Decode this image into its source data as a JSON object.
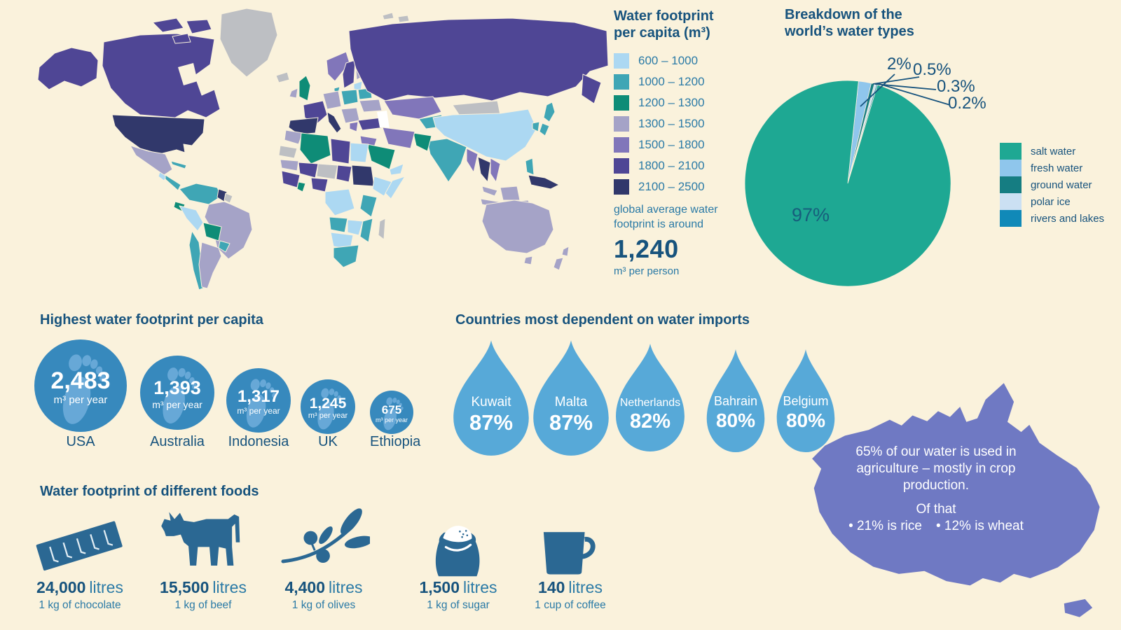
{
  "palette": {
    "bg": "#FAF2DC",
    "ink": "#17537D",
    "inkLight": "#2A7AA6",
    "white": "#FFFFFF",
    "bucket1": "#ACD8F2",
    "bucket2": "#3FA6B5",
    "bucket3": "#0E8C77",
    "bucket4": "#A5A3C7",
    "bucket5": "#8176BA",
    "bucket6": "#4F4695",
    "bucket7": "#31386B",
    "nodata": "#BDBFC3",
    "pieSalt": "#1EA893",
    "pieFresh": "#8FC6EC",
    "pieGround": "#157D82",
    "piePolar": "#CBE0F3",
    "pieRivers": "#1089B8",
    "pieInside": "#175E7C",
    "circleBlue": "#3789BD",
    "footLight": "#74B0DE",
    "dropBlue": "#57A9D8",
    "foodBlue": "#2B6893",
    "auPurple": "#6F79C3"
  },
  "map_legend": {
    "title": "Water footprint per capita (m³)",
    "ranges": [
      "600 – 1000",
      "1000 – 1200",
      "1200 – 1300",
      "1300 – 1500",
      "1500 – 1800",
      "1800 – 2100",
      "2100 – 2500"
    ],
    "avg_intro": "global average water footprint is around",
    "avg_value": "1,240",
    "avg_unit": "m³ per person"
  },
  "pie": {
    "title": "Breakdown of the world’s water types",
    "inside_label": "97%",
    "callouts": [
      "2%",
      "0.5%",
      "0.3%",
      "0.2%"
    ],
    "legend": [
      "salt water",
      "fresh water",
      "ground water",
      "polar ice",
      "rivers and lakes"
    ]
  },
  "footprints": {
    "title": "Highest water footprint per capita",
    "unit": "m³ per year",
    "items": [
      {
        "country": "USA",
        "value": "2,483"
      },
      {
        "country": "Australia",
        "value": "1,393"
      },
      {
        "country": "Indonesia",
        "value": "1,317"
      },
      {
        "country": "UK",
        "value": "1,245"
      },
      {
        "country": "Ethiopia",
        "value": "675"
      }
    ]
  },
  "imports": {
    "title": "Countries most dependent on water imports",
    "items": [
      {
        "country": "Kuwait",
        "pct": "87%"
      },
      {
        "country": "Malta",
        "pct": "87%"
      },
      {
        "country": "Netherlands",
        "pct": "82%"
      },
      {
        "country": "Bahrain",
        "pct": "80%"
      },
      {
        "country": "Belgium",
        "pct": "80%"
      }
    ]
  },
  "australia_note": {
    "line1": "65% of our water is used in agriculture – mostly in crop production.",
    "line2": "Of that",
    "bullet1": "• 21% is rice",
    "bullet2": "• 12% is wheat"
  },
  "foods": {
    "title": "Water footprint of different foods",
    "items": [
      {
        "icon": "chocolate-bar-icon",
        "value": "24,000",
        "unit": "litres",
        "desc": "1 kg of chocolate"
      },
      {
        "icon": "cow-icon",
        "value": "15,500",
        "unit": "litres",
        "desc": "1 kg of beef"
      },
      {
        "icon": "olive-branch-icon",
        "value": "4,400",
        "unit": "litres",
        "desc": "1 kg of olives"
      },
      {
        "icon": "sugar-sack-icon",
        "value": "1,500",
        "unit": "litres",
        "desc": "1 kg of sugar"
      },
      {
        "icon": "coffee-mug-icon",
        "value": "140",
        "unit": "litres",
        "desc": "1 cup of coffee"
      }
    ]
  },
  "chart_data": [
    {
      "type": "pie",
      "title": "Breakdown of the world’s water types",
      "labels": [
        "salt water",
        "fresh water",
        "ground water",
        "polar ice",
        "rivers and lakes"
      ],
      "values": [
        97,
        2,
        0.5,
        0.3,
        0.2
      ],
      "value_labels": [
        "97%",
        "2%",
        "0.5%",
        "0.3%",
        "0.2%"
      ],
      "colors": [
        "#1EA893",
        "#8FC6EC",
        "#157D82",
        "#CBE0F3",
        "#1089B8"
      ],
      "legend_position": "right"
    },
    {
      "type": "heatmap",
      "subtype": "world-choropleth",
      "title": "Water footprint per capita (m³)",
      "legend_buckets": [
        "600 – 1000",
        "1000 – 1200",
        "1200 – 1300",
        "1300 – 1500",
        "1500 – 1800",
        "1800 – 2100",
        "2100 – 2500"
      ],
      "bucket_colors": [
        "#ACD8F2",
        "#3FA6B5",
        "#0E8C77",
        "#A5A3C7",
        "#8176BA",
        "#4F4695",
        "#31386B"
      ],
      "note": "global average water footprint is around 1,240 m³ per person"
    },
    {
      "type": "bar",
      "title": "Highest water footprint per capita",
      "categories": [
        "USA",
        "Australia",
        "Indonesia",
        "UK",
        "Ethiopia"
      ],
      "values": [
        2483,
        1393,
        1317,
        1245,
        675
      ],
      "unit": "m³ per year"
    },
    {
      "type": "bar",
      "title": "Countries most dependent on water imports",
      "categories": [
        "Kuwait",
        "Malta",
        "Netherlands",
        "Bahrain",
        "Belgium"
      ],
      "values": [
        87,
        87,
        82,
        80,
        80
      ],
      "unit": "%"
    },
    {
      "type": "bar",
      "title": "Water footprint of different foods",
      "categories": [
        "1 kg of chocolate",
        "1 kg of beef",
        "1 kg of olives",
        "1 kg of sugar",
        "1 cup of coffee"
      ],
      "values": [
        24000,
        15500,
        4400,
        1500,
        140
      ],
      "unit": "litres"
    }
  ]
}
